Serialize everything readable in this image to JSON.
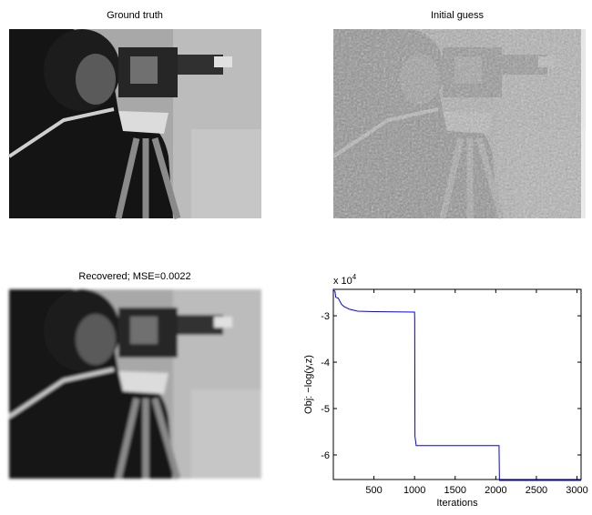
{
  "panels": [
    {
      "title": "Ground truth"
    },
    {
      "title": "Initial guess"
    },
    {
      "title": "Recovered; MSE=0.0022"
    }
  ],
  "chart_data": {
    "type": "line",
    "xlabel": "Iterations",
    "ylabel": "Obj: −log(y,z)",
    "exponent_base": "x 10",
    "exponent_power": "4",
    "xlim": [
      0,
      3050
    ],
    "xticks": [
      500,
      1000,
      1500,
      2000,
      2500,
      3000
    ],
    "ylim": [
      -6.53,
      -2.43
    ],
    "yticks": [
      -3,
      -4,
      -5,
      -6
    ],
    "series": [
      {
        "color": "#0000ff",
        "x": [
          0,
          20,
          30,
          60,
          100,
          130,
          200,
          300,
          500,
          1000,
          1002,
          1005,
          1020,
          1500,
          2040,
          2045,
          2500,
          3050
        ],
        "values": [
          -2.45,
          -2.47,
          -2.6,
          -2.62,
          -2.75,
          -2.8,
          -2.86,
          -2.9,
          -2.91,
          -2.92,
          -3.1,
          -5.6,
          -5.8,
          -5.8,
          -5.8,
          -6.55,
          -6.55,
          -6.55
        ]
      }
    ]
  }
}
